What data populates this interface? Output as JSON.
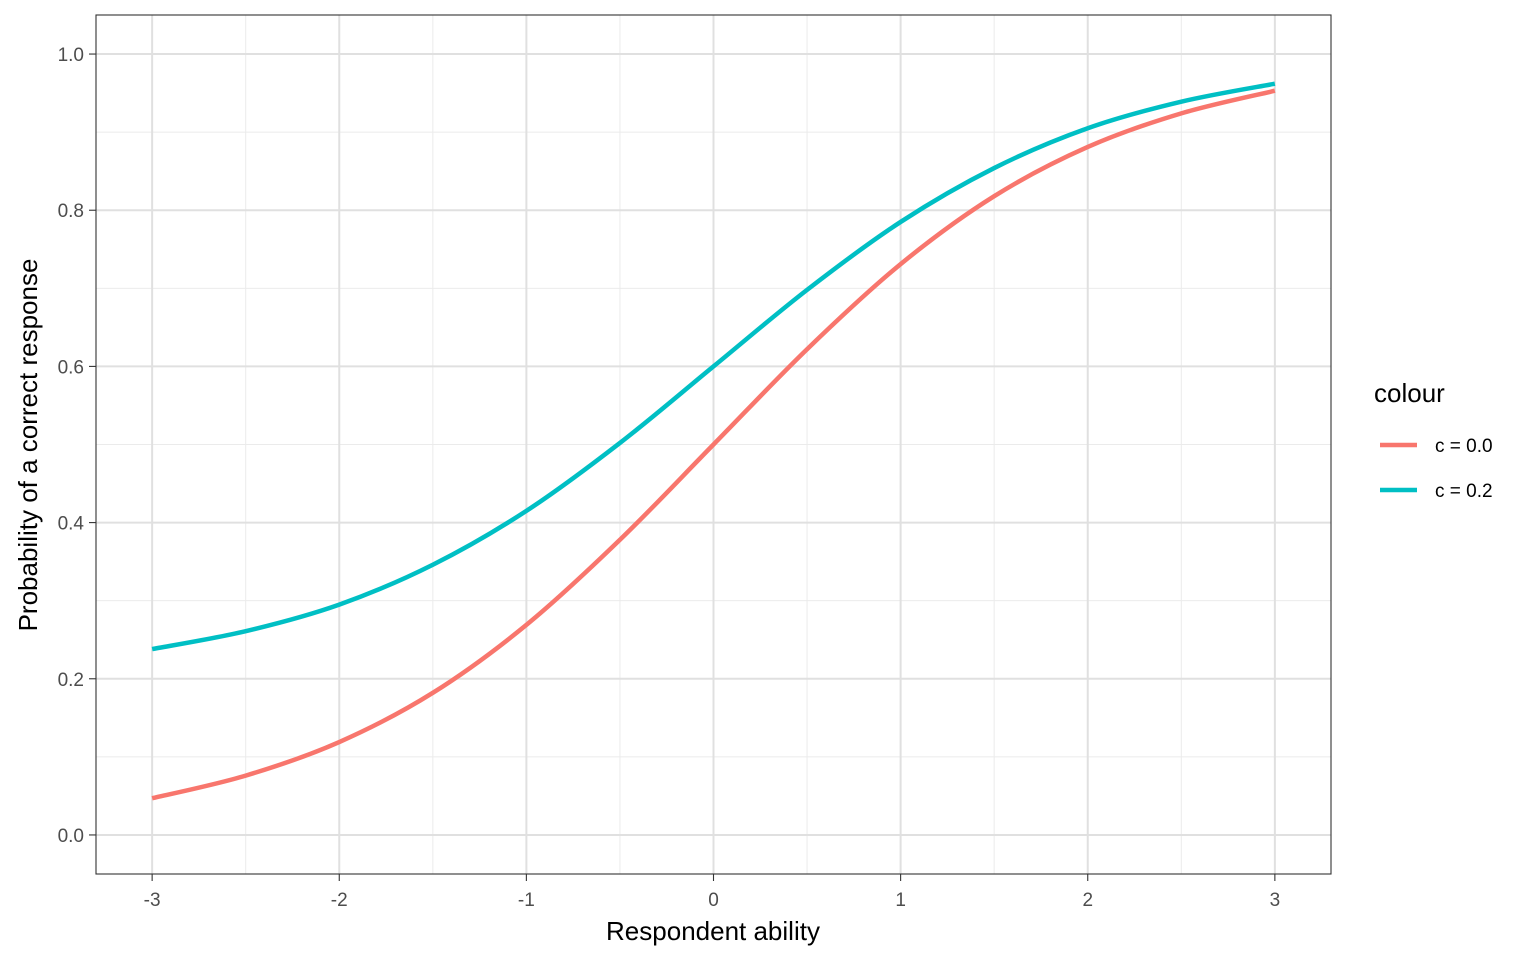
{
  "chart_data": {
    "type": "line",
    "title": "",
    "xlabel": "Respondent ability",
    "ylabel": "Probability of a correct response",
    "xlim": [
      -3.3,
      3.3
    ],
    "ylim": [
      -0.05,
      1.05
    ],
    "xticks": [
      -3,
      -2,
      -1,
      0,
      1,
      2,
      3
    ],
    "xtick_labels": [
      "-3",
      "-2",
      "-1",
      "0",
      "1",
      "2",
      "3"
    ],
    "yticks": [
      0.0,
      0.2,
      0.4,
      0.6,
      0.8,
      1.0
    ],
    "ytick_labels": [
      "0.0",
      "0.2",
      "0.4",
      "0.6",
      "0.8",
      "1.0"
    ],
    "grid": true,
    "legend": {
      "title": "colour",
      "position": "right"
    },
    "x": [
      -3,
      -2.5,
      -2,
      -1.5,
      -1,
      -0.5,
      0,
      0.5,
      1,
      1.5,
      2,
      2.5,
      3
    ],
    "series": [
      {
        "name": "c = 0.0",
        "color": "#F8766D",
        "values": [
          0.047,
          0.076,
          0.119,
          0.182,
          0.269,
          0.378,
          0.5,
          0.622,
          0.731,
          0.818,
          0.881,
          0.924,
          0.953
        ]
      },
      {
        "name": "c = 0.2",
        "color": "#00BFC4",
        "values": [
          0.238,
          0.261,
          0.295,
          0.346,
          0.415,
          0.502,
          0.6,
          0.698,
          0.785,
          0.854,
          0.905,
          0.939,
          0.962
        ]
      }
    ]
  }
}
